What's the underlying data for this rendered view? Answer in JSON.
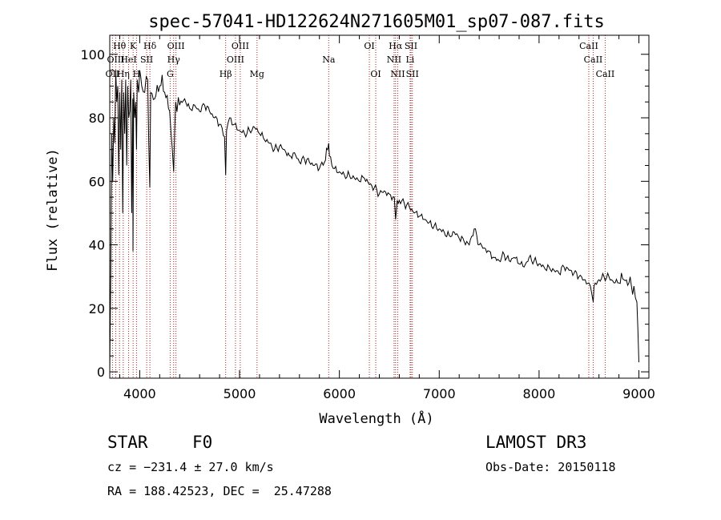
{
  "chart_data": {
    "type": "line",
    "title": "spec-57041-HD122624N271605M01_sp07-087.fits",
    "xlabel": "Wavelength (Å)",
    "ylabel": "Flux (relative)",
    "xlim": [
      3700,
      9100
    ],
    "ylim": [
      -2,
      106
    ],
    "xticks": [
      4000,
      5000,
      6000,
      7000,
      8000,
      9000
    ],
    "yticks": [
      0,
      20,
      40,
      60,
      80,
      100
    ],
    "line_color": "#000000",
    "marker_color": "#b22222",
    "series": [
      {
        "name": "flux",
        "x": [
          3700,
          3710,
          3720,
          3730,
          3740,
          3750,
          3760,
          3770,
          3780,
          3790,
          3800,
          3810,
          3820,
          3830,
          3840,
          3850,
          3860,
          3870,
          3880,
          3890,
          3900,
          3910,
          3920,
          3930,
          3933,
          3940,
          3950,
          3960,
          3968,
          3975,
          3990,
          4000,
          4020,
          4050,
          4080,
          4101,
          4110,
          4150,
          4200,
          4250,
          4300,
          4340,
          4360,
          4400,
          4450,
          4500,
          4550,
          4600,
          4650,
          4700,
          4750,
          4800,
          4850,
          4861,
          4870,
          4900,
          4950,
          5000,
          5050,
          5100,
          5150,
          5200,
          5250,
          5300,
          5350,
          5400,
          5450,
          5500,
          5550,
          5600,
          5650,
          5700,
          5750,
          5800,
          5850,
          5893,
          5900,
          5950,
          6000,
          6050,
          6100,
          6150,
          6200,
          6250,
          6300,
          6350,
          6400,
          6450,
          6500,
          6550,
          6563,
          6580,
          6600,
          6650,
          6700,
          6750,
          6800,
          6850,
          6900,
          6950,
          7000,
          7050,
          7100,
          7150,
          7200,
          7250,
          7300,
          7350,
          7400,
          7450,
          7500,
          7550,
          7600,
          7650,
          7700,
          7750,
          7800,
          7850,
          7900,
          7950,
          8000,
          8050,
          8100,
          8150,
          8200,
          8250,
          8300,
          8350,
          8400,
          8450,
          8500,
          8542,
          8550,
          8600,
          8650,
          8700,
          8750,
          8800,
          8850,
          8900,
          8950,
          8980,
          9000
        ],
        "values": [
          0,
          30,
          75,
          60,
          80,
          72,
          95,
          85,
          90,
          62,
          88,
          70,
          92,
          50,
          88,
          75,
          92,
          65,
          90,
          80,
          82,
          92,
          50,
          86,
          38,
          88,
          80,
          85,
          70,
          92,
          88,
          95,
          90,
          88,
          92,
          58,
          88,
          86,
          90,
          88,
          82,
          63,
          85,
          84,
          86,
          83,
          84,
          82,
          84,
          82,
          80,
          78,
          74,
          62,
          76,
          80,
          78,
          76,
          75,
          76,
          77,
          75,
          73,
          72,
          70,
          71,
          70,
          68,
          69,
          66,
          67,
          66,
          65,
          64,
          66,
          72,
          68,
          64,
          63,
          62,
          62,
          61,
          60,
          61,
          59,
          58,
          56,
          57,
          56,
          55,
          48,
          54,
          54,
          53,
          52,
          50,
          49,
          48,
          47,
          46,
          45,
          44,
          43,
          44,
          42,
          41,
          40,
          45,
          40,
          39,
          38,
          36,
          35,
          37,
          35,
          36,
          34,
          33,
          36,
          35,
          34,
          33,
          33,
          32,
          31,
          33,
          32,
          31,
          30,
          29,
          28,
          22,
          27,
          29,
          30,
          30,
          28,
          28,
          29,
          28,
          27,
          22,
          3
        ]
      }
    ],
    "spectral_lines": [
      {
        "label": "OII",
        "wl": 3727,
        "row": 3
      },
      {
        "label": "Hθ",
        "wl": 3798,
        "row": 1
      },
      {
        "label": "Hη",
        "wl": 3835,
        "row": 3
      },
      {
        "label": "OIII",
        "wl": 3760,
        "row": 2
      },
      {
        "label": "HeI",
        "wl": 3889,
        "row": 2
      },
      {
        "label": "K",
        "wl": 3934,
        "row": 1
      },
      {
        "label": "H",
        "wl": 3968,
        "row": 3
      },
      {
        "label": "SII",
        "wl": 4070,
        "row": 2
      },
      {
        "label": "Hδ",
        "wl": 4102,
        "row": 1
      },
      {
        "label": "OIII",
        "wl": 4363,
        "row": 1
      },
      {
        "label": "Hγ",
        "wl": 4340,
        "row": 2
      },
      {
        "label": "G",
        "wl": 4305,
        "row": 3
      },
      {
        "label": "Hβ",
        "wl": 4861,
        "row": 3
      },
      {
        "label": "OIII",
        "wl": 5007,
        "row": 1
      },
      {
        "label": "OIII",
        "wl": 4959,
        "row": 2
      },
      {
        "label": "Mg",
        "wl": 5175,
        "row": 3
      },
      {
        "label": "Na",
        "wl": 5893,
        "row": 2
      },
      {
        "label": "OI",
        "wl": 6300,
        "row": 1
      },
      {
        "label": "OI",
        "wl": 6364,
        "row": 3
      },
      {
        "label": "Hα",
        "wl": 6563,
        "row": 1
      },
      {
        "label": "SII",
        "wl": 6717,
        "row": 1
      },
      {
        "label": "NII",
        "wl": 6548,
        "row": 2
      },
      {
        "label": "NII",
        "wl": 6584,
        "row": 3
      },
      {
        "label": "Li",
        "wl": 6708,
        "row": 2
      },
      {
        "label": "SII",
        "wl": 6731,
        "row": 3
      },
      {
        "label": "CaII",
        "wl": 8498,
        "row": 1
      },
      {
        "label": "CaII",
        "wl": 8542,
        "row": 2
      },
      {
        "label": "CaII",
        "wl": 8662,
        "row": 3
      }
    ]
  },
  "info": {
    "object_class": "STAR",
    "subclass": "F0",
    "survey": "LAMOST DR3",
    "cz": "cz = −231.4 ± 27.0 km/s",
    "obs_date": "Obs-Date: 20150118",
    "coords": "RA = 188.42523, DEC =  25.47288"
  }
}
